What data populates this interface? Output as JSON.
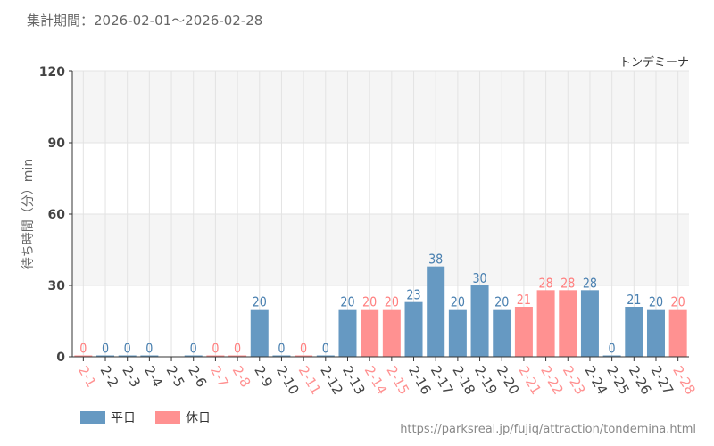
{
  "header": {
    "period": "集計期間：2026-02-01～2026-02-28"
  },
  "footer": {
    "credit": "https://parksreal.jp/fujiq/attraction/tondemina.html"
  },
  "colors": {
    "weekday": "#6699c2",
    "holiday": "#ff9191",
    "weekday_label": "#4a80b0",
    "holiday_label": "#ff8080"
  },
  "chart_data": {
    "type": "bar",
    "title": "トンデミーナ",
    "xlabel": "",
    "ylabel": "待ち時間（分）min",
    "ylim": [
      0,
      120
    ],
    "yticks": [
      0,
      30,
      60,
      90,
      120
    ],
    "grid": true,
    "legend": {
      "position": "bottom-left",
      "entries": [
        "平日",
        "休日"
      ]
    },
    "categories": [
      "2-1",
      "2-2",
      "2-3",
      "2-4",
      "2-5",
      "2-6",
      "2-7",
      "2-8",
      "2-9",
      "2-10",
      "2-11",
      "2-12",
      "2-13",
      "2-14",
      "2-15",
      "2-16",
      "2-17",
      "2-18",
      "2-19",
      "2-20",
      "2-21",
      "2-22",
      "2-23",
      "2-24",
      "2-25",
      "2-26",
      "2-27",
      "2-28"
    ],
    "values": [
      0,
      0,
      0,
      0,
      null,
      0,
      0,
      0,
      20,
      0,
      0,
      0,
      20,
      20,
      20,
      23,
      38,
      20,
      30,
      20,
      21,
      28,
      28,
      28,
      0,
      21,
      20,
      20
    ],
    "holiday": [
      true,
      false,
      false,
      false,
      false,
      false,
      true,
      true,
      false,
      false,
      true,
      false,
      false,
      true,
      true,
      false,
      false,
      false,
      false,
      false,
      true,
      true,
      true,
      false,
      false,
      false,
      false,
      true
    ]
  }
}
